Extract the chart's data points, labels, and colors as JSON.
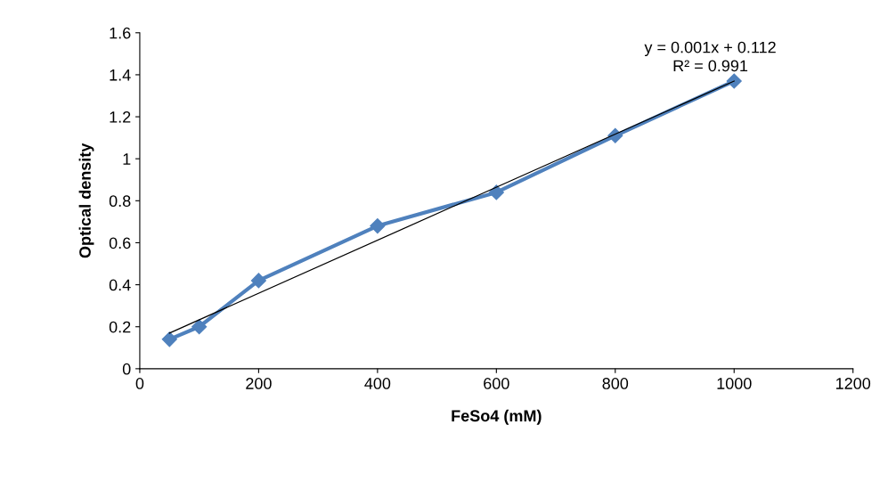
{
  "chart_data": {
    "type": "line",
    "xlabel": "FeSo4 (mM)",
    "ylabel": "Optical density",
    "series": [
      {
        "color": "#4f81bd",
        "marker": "diamond",
        "x": [
          50,
          100,
          200,
          400,
          600,
          800,
          1000
        ],
        "values": [
          0.14,
          0.2,
          0.42,
          0.68,
          0.84,
          1.11,
          1.37
        ]
      },
      {
        "color": "#000000",
        "marker": "none",
        "x": [
          50,
          1000
        ],
        "values": [
          0.17,
          1.37
        ]
      }
    ],
    "annotations": [
      "y = 0.001x + 0.112\nR² = 0.991"
    ],
    "xlim": [
      0,
      1200
    ],
    "xticks": [
      0,
      200,
      400,
      600,
      800,
      1000,
      1200
    ],
    "ylim": [
      0,
      1.6
    ],
    "yticks": [
      0,
      0.2,
      0.4,
      0.6,
      0.8,
      1,
      1.2,
      1.4,
      1.6
    ],
    "grid": false,
    "legend": false
  }
}
